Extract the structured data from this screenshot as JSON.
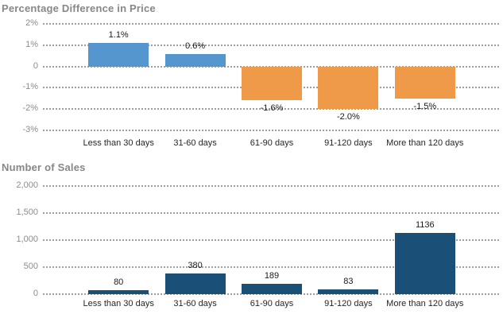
{
  "chart_data": [
    {
      "type": "bar",
      "title": "Percentage Difference in Price",
      "categories": [
        "Less than 30 days",
        "31-60 days",
        "61-90 days",
        "91-120 days",
        "More than 120 days"
      ],
      "values": [
        1.1,
        0.6,
        -1.6,
        -2.0,
        -1.5
      ],
      "data_labels": [
        "1.1%",
        "0.6%",
        "-1.6%",
        "-2.0%",
        "-1.5%"
      ],
      "ylim": [
        -3,
        2
      ],
      "y_ticks": [
        {
          "value": 2,
          "label": "2%"
        },
        {
          "value": 1,
          "label": "1%"
        },
        {
          "value": 0,
          "label": "0"
        },
        {
          "value": -1,
          "label": "-1%"
        },
        {
          "value": -2,
          "label": "-2%"
        },
        {
          "value": -3,
          "label": "-3%"
        }
      ],
      "grid": "horizontal-dotted",
      "legend": "none",
      "colors": {
        "positive": "#5596CE",
        "negative": "#EE9A49"
      }
    },
    {
      "type": "bar",
      "title": "Number of Sales",
      "categories": [
        "Less than 30 days",
        "31-60 days",
        "61-90 days",
        "91-120 days",
        "More than 120 days"
      ],
      "values": [
        80,
        380,
        189,
        83,
        1136
      ],
      "data_labels": [
        "80",
        "380",
        "189",
        "83",
        "1136"
      ],
      "ylim": [
        0,
        2000
      ],
      "y_ticks": [
        {
          "value": 2000,
          "label": "2,000"
        },
        {
          "value": 1500,
          "label": "1,500"
        },
        {
          "value": 1000,
          "label": "1,000"
        },
        {
          "value": 500,
          "label": "500"
        },
        {
          "value": 0,
          "label": "0"
        }
      ],
      "grid": "horizontal-dotted",
      "legend": "none",
      "colors": {
        "positive": "#1A5078",
        "negative": "#1A5078"
      }
    }
  ],
  "style": {
    "background": "#FFFFFF",
    "title_color": "#878787",
    "tick_label_color": "#8C8C8C",
    "category_label_color": "#262626",
    "data_label_color": "#1A1A1A",
    "gridline_color": "#9E9E9E"
  }
}
